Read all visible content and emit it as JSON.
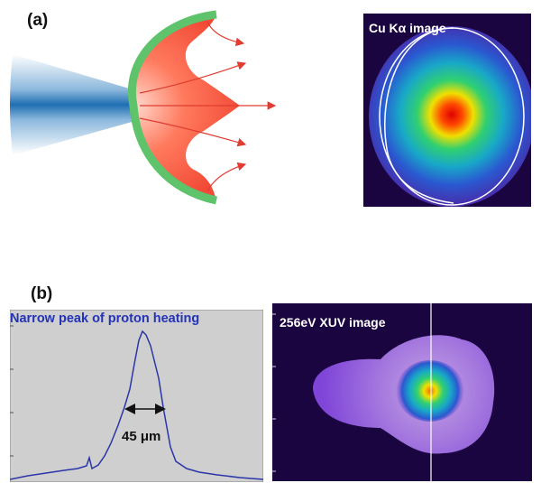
{
  "panel_a": {
    "label": "(a)",
    "image_title": "Cu Kα image"
  },
  "panel_b": {
    "label": "(b)",
    "lineout_title": "Narrow peak of proton heating",
    "fwhm_label": "45 μm",
    "image_title": "256eV XUV image"
  },
  "colors": {
    "lineout_curve": "#2a36a8",
    "lineout_background": "#cfcfcf",
    "target_outline": "#5ec36a",
    "target_fill": "#ff5a40",
    "arrows": "#e03c32",
    "cone_blue": "#1f6fb3",
    "image_background": "#1a0540"
  }
}
